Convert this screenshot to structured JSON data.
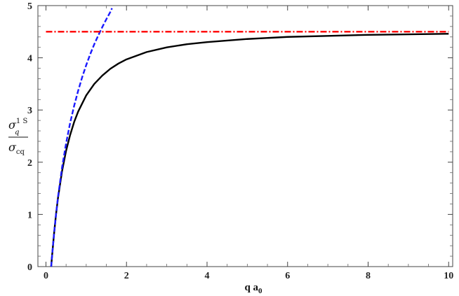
{
  "chart_data": {
    "type": "line",
    "title": "",
    "xlabel": "q a",
    "xlabel_subscript": "0",
    "ylabel_numerator": "σ",
    "ylabel_numerator_sup": "1 S",
    "ylabel_numerator_sub": "q",
    "ylabel_denominator": "σ",
    "ylabel_denominator_sub": "cq",
    "xlim": [
      -0.2,
      10.1
    ],
    "ylim": [
      0,
      5
    ],
    "xticks": [
      0,
      2,
      4,
      6,
      8,
      10
    ],
    "xtick_labels": [
      "0",
      "2",
      "4",
      "6",
      "8",
      "10"
    ],
    "yticks": [
      0,
      1,
      2,
      3,
      4,
      5
    ],
    "ytick_labels": [
      "0",
      "1",
      "2",
      "3",
      "4",
      "5"
    ],
    "grid": false,
    "legend": false,
    "series": [
      {
        "style": "solid",
        "color": "#000000",
        "x": [
          0.13,
          0.15,
          0.2,
          0.25,
          0.3,
          0.4,
          0.5,
          0.6,
          0.7,
          0.8,
          1.0,
          1.2,
          1.4,
          1.6,
          1.8,
          2.0,
          2.5,
          3.0,
          3.5,
          4.0,
          5.0,
          6.0,
          7.0,
          8.0,
          9.0,
          10.0
        ],
        "y": [
          0.0,
          0.19,
          0.62,
          1.0,
          1.32,
          1.83,
          2.22,
          2.52,
          2.77,
          2.97,
          3.28,
          3.5,
          3.66,
          3.79,
          3.89,
          3.97,
          4.11,
          4.2,
          4.26,
          4.3,
          4.36,
          4.4,
          4.42,
          4.44,
          4.45,
          4.46
        ]
      },
      {
        "style": "dashed",
        "color": "#1a1aff",
        "x": [
          0.13,
          0.15,
          0.2,
          0.25,
          0.3,
          0.4,
          0.5,
          0.6,
          0.7,
          0.8,
          0.9,
          1.0,
          1.1,
          1.2,
          1.3,
          1.4,
          1.5,
          1.6,
          1.64
        ],
        "y": [
          0.0,
          0.19,
          0.62,
          1.0,
          1.34,
          1.9,
          2.36,
          2.75,
          3.08,
          3.37,
          3.63,
          3.86,
          4.07,
          4.26,
          4.43,
          4.59,
          4.74,
          4.88,
          4.95
        ]
      },
      {
        "style": "dashdot",
        "color": "#ff0000",
        "x": [
          0.0,
          10.0
        ],
        "y": [
          4.5,
          4.5
        ]
      }
    ]
  }
}
